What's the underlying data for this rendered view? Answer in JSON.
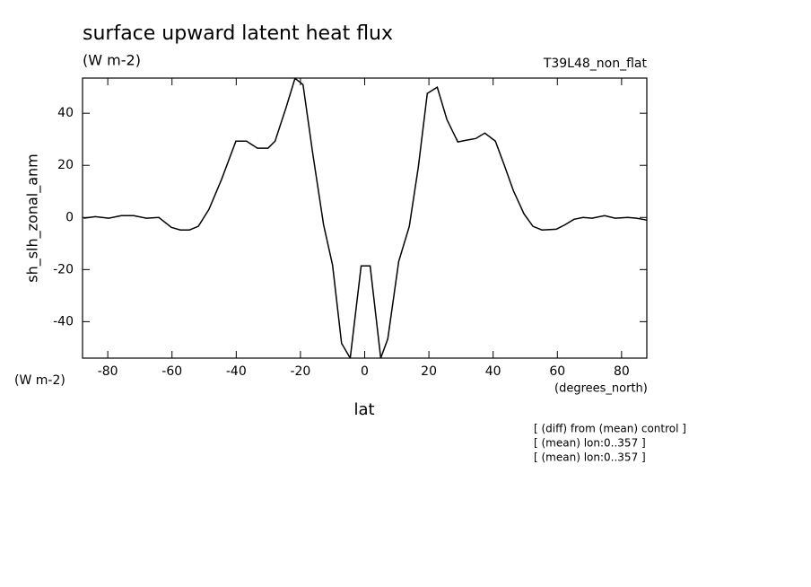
{
  "chart_data": {
    "type": "line",
    "title": "surface upward latent heat flux",
    "subtitle": "(W m-2)",
    "run_label": "T39L48_non_flat",
    "y_label": "sh_slh_zonal_anm",
    "y_units": "(W m-2)",
    "x_units": "(degrees_north)",
    "x_label": "lat",
    "annotations": [
      "[ (diff) from (mean) control ]",
      "[ (mean) lon:0..357 ]",
      "[ (mean) lon:0..357 ]"
    ],
    "color": "#000000",
    "xlim": [
      -87.86,
      87.86
    ],
    "ylim": [
      -54,
      53.5
    ],
    "xticks": [
      -80,
      -60,
      -40,
      -20,
      0,
      20,
      40,
      60,
      80
    ],
    "yticks": [
      -40,
      -20,
      0,
      20,
      40
    ],
    "x": [
      -87.5,
      -83.9,
      -79.7,
      -75.8,
      -71.9,
      -68.0,
      -64.1,
      -60.2,
      -57.4,
      -54.6,
      -51.8,
      -48.5,
      -44.6,
      -40.1,
      -36.8,
      -33.4,
      -30.1,
      -27.9,
      -24.5,
      -21.7,
      -19.2,
      -16.2,
      -12.8,
      -10.0,
      -7.2,
      -4.5,
      -1.1,
      1.7,
      5.0,
      7.2,
      10.6,
      13.9,
      16.7,
      19.5,
      22.6,
      25.6,
      29.0,
      31.8,
      34.6,
      37.4,
      40.7,
      43.5,
      46.3,
      49.6,
      52.4,
      55.2,
      59.7,
      62.4,
      65.2,
      68.0,
      70.8,
      74.7,
      78.0,
      81.9,
      84.7,
      87.8
    ],
    "values": [
      -0.3,
      0.3,
      -0.3,
      0.7,
      0.7,
      -0.3,
      0,
      -3.8,
      -4.8,
      -4.8,
      -3.4,
      3.1,
      14.5,
      29.3,
      29.3,
      26.6,
      26.6,
      29.3,
      42.1,
      53.4,
      51,
      24.8,
      -2.8,
      -18.3,
      -48.3,
      -54,
      -18.6,
      -18.6,
      -54,
      -46.6,
      -16.9,
      -3.4,
      19.3,
      47.6,
      50.0,
      37.6,
      29.0,
      29.7,
      30.3,
      32.4,
      29.3,
      20,
      10.3,
      1.4,
      -3.4,
      -4.8,
      -4.5,
      -2.8,
      -0.7,
      0,
      -0.3,
      0.7,
      -0.3,
      0,
      -0.3,
      -1
    ]
  }
}
